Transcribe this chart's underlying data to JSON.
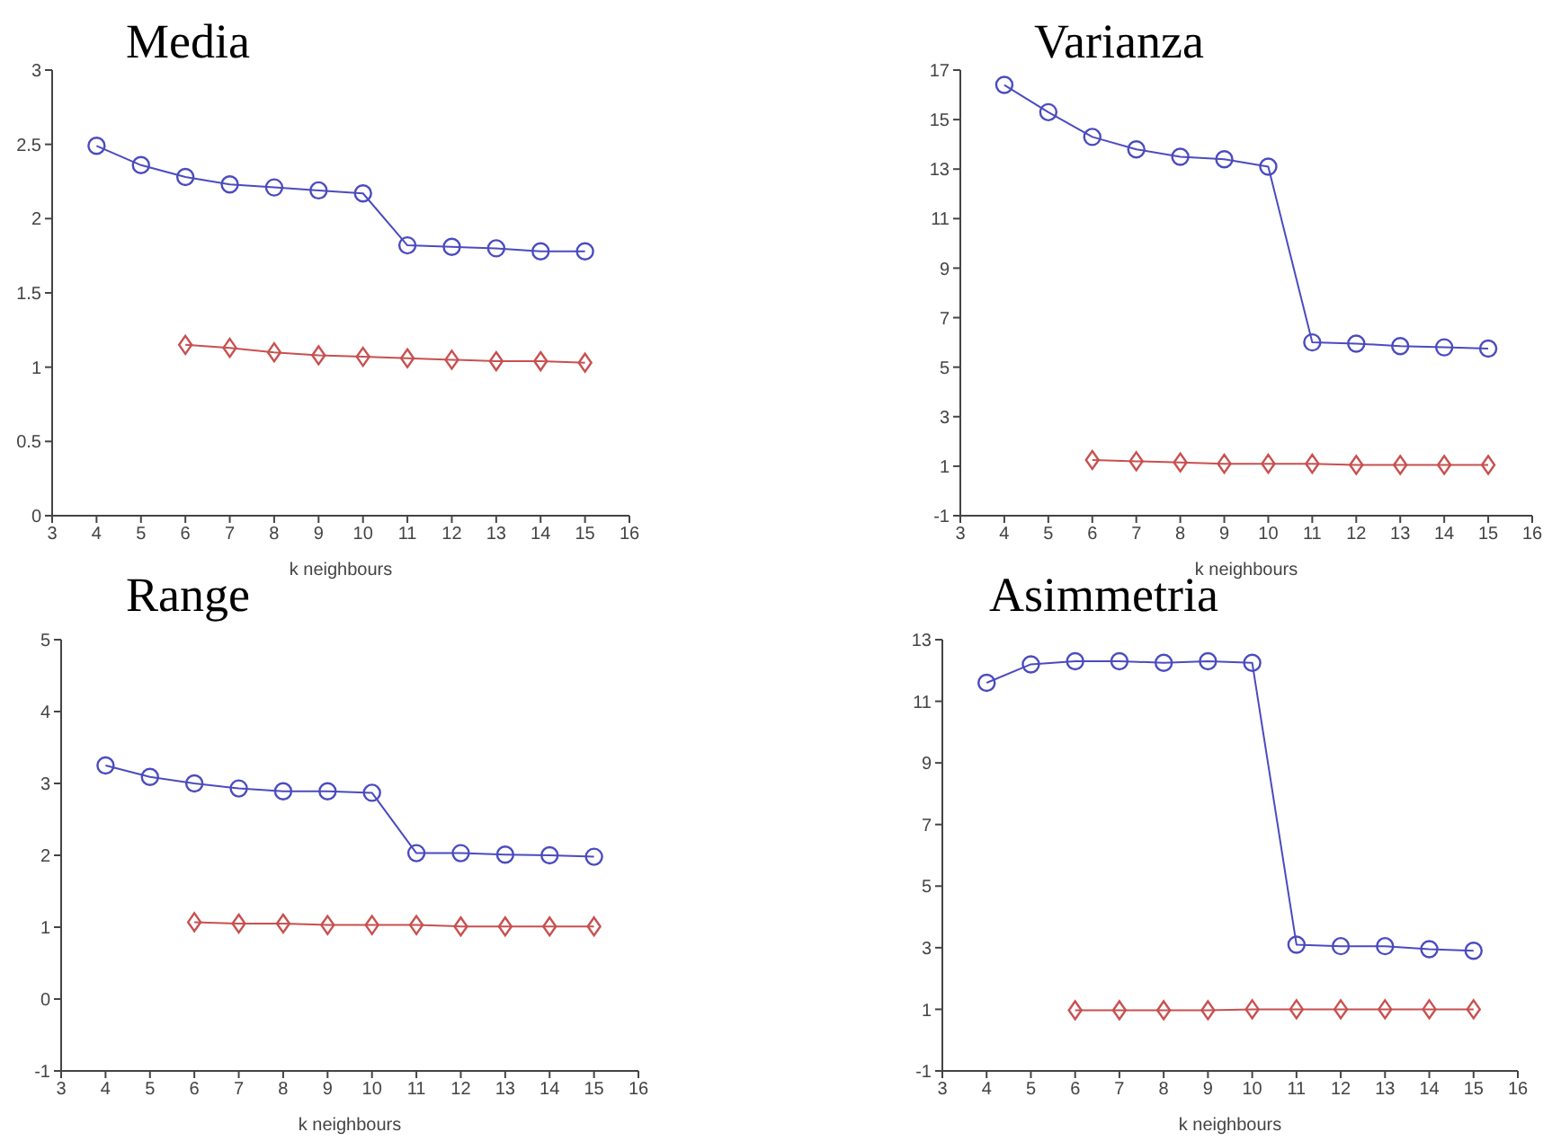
{
  "chart_data": [
    {
      "type": "line",
      "title": "Media",
      "xlabel": "k neighbours",
      "xlim": [
        3,
        16
      ],
      "xticks": [
        3,
        4,
        5,
        6,
        7,
        8,
        9,
        10,
        11,
        12,
        13,
        14,
        15,
        16
      ],
      "ylim": [
        0,
        3
      ],
      "yticks": [
        0,
        0.5,
        1,
        1.5,
        2,
        2.5,
        3
      ],
      "series": [
        {
          "color": "#4b4bc0",
          "marker": "circle",
          "x": [
            4,
            5,
            6,
            7,
            8,
            9,
            10,
            11,
            12,
            13,
            14,
            15
          ],
          "values": [
            2.49,
            2.36,
            2.28,
            2.23,
            2.21,
            2.19,
            2.17,
            1.82,
            1.81,
            1.8,
            1.78,
            1.78
          ]
        },
        {
          "color": "#c85050",
          "marker": "diamond",
          "x": [
            6,
            7,
            8,
            9,
            10,
            11,
            12,
            13,
            14,
            15
          ],
          "values": [
            1.15,
            1.13,
            1.1,
            1.08,
            1.07,
            1.06,
            1.05,
            1.04,
            1.04,
            1.03
          ]
        }
      ]
    },
    {
      "type": "line",
      "title": "Varianza",
      "xlabel": "k neighbours",
      "xlim": [
        3,
        16
      ],
      "xticks": [
        3,
        4,
        5,
        6,
        7,
        8,
        9,
        10,
        11,
        12,
        13,
        14,
        15,
        16
      ],
      "ylim": [
        -1,
        17
      ],
      "yticks": [
        -1,
        1,
        3,
        5,
        7,
        9,
        11,
        13,
        15,
        17
      ],
      "series": [
        {
          "color": "#4b4bc0",
          "marker": "circle",
          "x": [
            4,
            5,
            6,
            7,
            8,
            9,
            10,
            11,
            12,
            13,
            14,
            15
          ],
          "values": [
            16.4,
            15.3,
            14.3,
            13.8,
            13.5,
            13.4,
            13.1,
            6.0,
            5.95,
            5.85,
            5.8,
            5.75
          ]
        },
        {
          "color": "#c85050",
          "marker": "diamond",
          "x": [
            6,
            7,
            8,
            9,
            10,
            11,
            12,
            13,
            14,
            15
          ],
          "values": [
            1.25,
            1.2,
            1.15,
            1.1,
            1.1,
            1.1,
            1.05,
            1.05,
            1.05,
            1.05
          ]
        }
      ]
    },
    {
      "type": "line",
      "title": "Range",
      "xlabel": "k neighbours",
      "xlim": [
        3,
        16
      ],
      "xticks": [
        3,
        4,
        5,
        6,
        7,
        8,
        9,
        10,
        11,
        12,
        13,
        14,
        15,
        16
      ],
      "ylim": [
        -1,
        5
      ],
      "yticks": [
        -1,
        0,
        1,
        2,
        3,
        4,
        5
      ],
      "series": [
        {
          "color": "#4b4bc0",
          "marker": "circle",
          "x": [
            4,
            5,
            6,
            7,
            8,
            9,
            10,
            11,
            12,
            13,
            14,
            15
          ],
          "values": [
            3.25,
            3.09,
            3.0,
            2.93,
            2.89,
            2.89,
            2.87,
            2.03,
            2.03,
            2.01,
            2.0,
            1.98
          ]
        },
        {
          "color": "#c85050",
          "marker": "diamond",
          "x": [
            6,
            7,
            8,
            9,
            10,
            11,
            12,
            13,
            14,
            15
          ],
          "values": [
            1.07,
            1.05,
            1.05,
            1.03,
            1.03,
            1.03,
            1.01,
            1.01,
            1.01,
            1.01
          ]
        }
      ]
    },
    {
      "type": "line",
      "title": "Asimmetria",
      "xlabel": "k neighbours",
      "xlim": [
        3,
        16
      ],
      "xticks": [
        3,
        4,
        5,
        6,
        7,
        8,
        9,
        10,
        11,
        12,
        13,
        14,
        15,
        16
      ],
      "ylim": [
        -1,
        13
      ],
      "yticks": [
        -1,
        1,
        3,
        5,
        7,
        9,
        11,
        13
      ],
      "series": [
        {
          "color": "#4b4bc0",
          "marker": "circle",
          "x": [
            4,
            5,
            6,
            7,
            8,
            9,
            10,
            11,
            12,
            13,
            14,
            15
          ],
          "values": [
            11.6,
            12.2,
            12.3,
            12.3,
            12.25,
            12.3,
            12.25,
            3.1,
            3.05,
            3.05,
            2.95,
            2.9
          ]
        },
        {
          "color": "#c85050",
          "marker": "diamond",
          "x": [
            6,
            7,
            8,
            9,
            10,
            11,
            12,
            13,
            14,
            15
          ],
          "values": [
            0.97,
            0.97,
            0.97,
            0.97,
            1.0,
            1.0,
            1.0,
            1.0,
            1.0,
            1.0
          ]
        }
      ]
    }
  ]
}
